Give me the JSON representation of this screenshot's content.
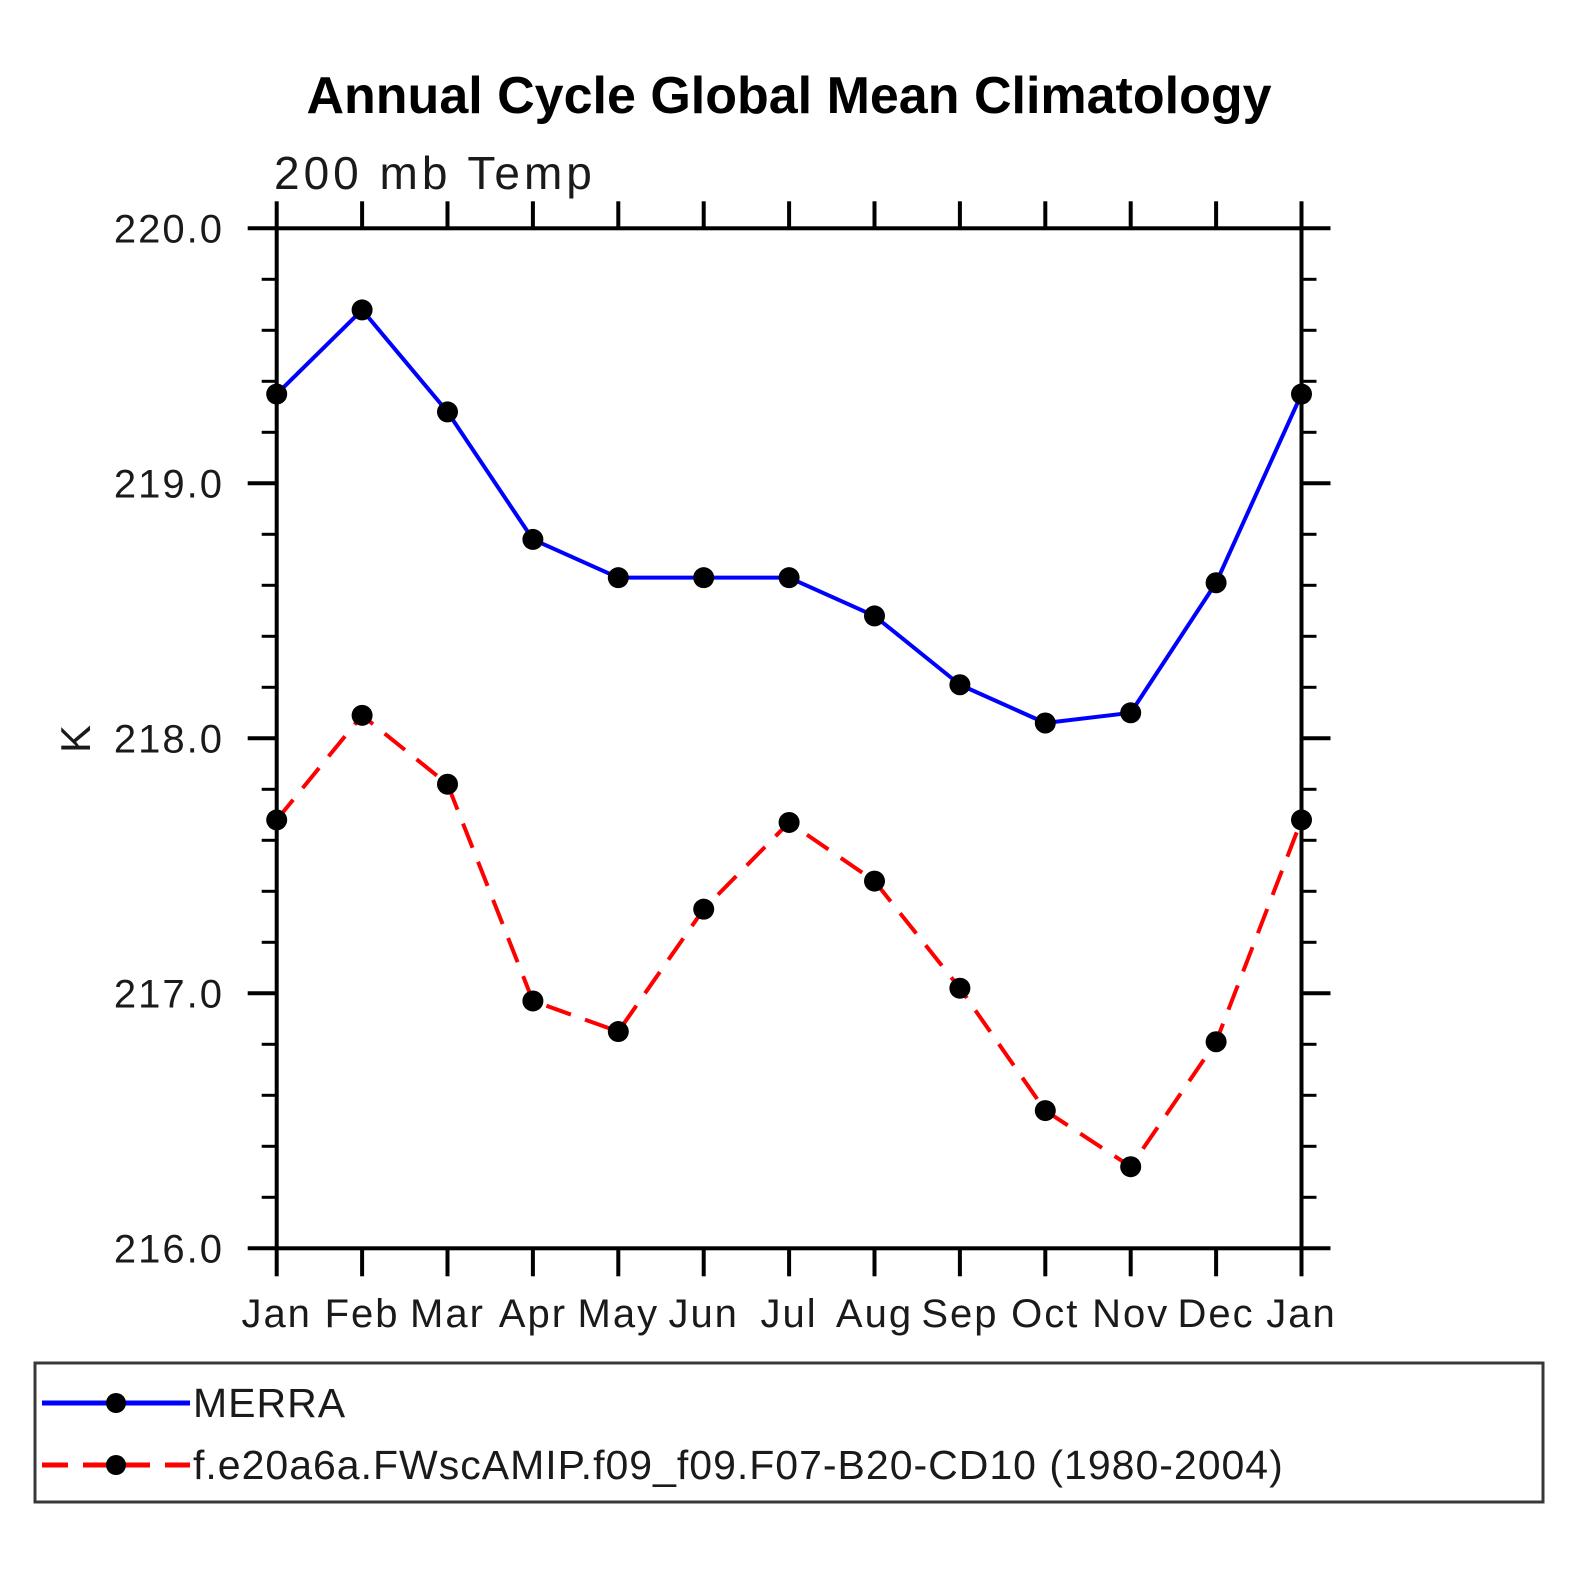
{
  "chart_data": {
    "type": "line",
    "title": "Annual Cycle Global Mean Climatology",
    "subtitle": "200 mb Temp",
    "xlabel": "",
    "ylabel": "K",
    "x_tick_labels": [
      "Jan",
      "Feb",
      "Mar",
      "Apr",
      "May",
      "Jun",
      "Jul",
      "Aug",
      "Sep",
      "Oct",
      "Nov",
      "Dec",
      "Jan"
    ],
    "y_ticks": [
      216.0,
      217.0,
      218.0,
      219.0,
      220.0
    ],
    "y_tick_labels": [
      "216.0",
      "217.0",
      "218.0",
      "219.0",
      "220.0"
    ],
    "ylim": [
      216.0,
      220.0
    ],
    "y_minor_step": 0.2,
    "grid": "off",
    "legend_position": "bottom",
    "series": [
      {
        "name": "MERRA",
        "color": "#0000ff",
        "line_style": "solid",
        "marker": "filled-circle",
        "marker_color": "#000000",
        "values": [
          219.35,
          219.68,
          219.28,
          218.78,
          218.63,
          218.63,
          218.63,
          218.48,
          218.21,
          218.06,
          218.1,
          218.61,
          219.35
        ]
      },
      {
        "name": "f.e20a6a.FWscAMIP.f09_f09.F07-B20-CD10 (1980-2004)",
        "color": "#ff0000",
        "line_style": "dashed",
        "marker": "filled-circle",
        "marker_color": "#000000",
        "values": [
          217.68,
          218.09,
          217.82,
          216.97,
          216.85,
          217.33,
          217.67,
          217.44,
          217.02,
          216.54,
          216.32,
          216.81,
          217.68
        ]
      }
    ],
    "colors": {
      "axis": "#000000",
      "text": "#1a1a1a",
      "legend_border": "#383838",
      "background": "#ffffff"
    }
  }
}
